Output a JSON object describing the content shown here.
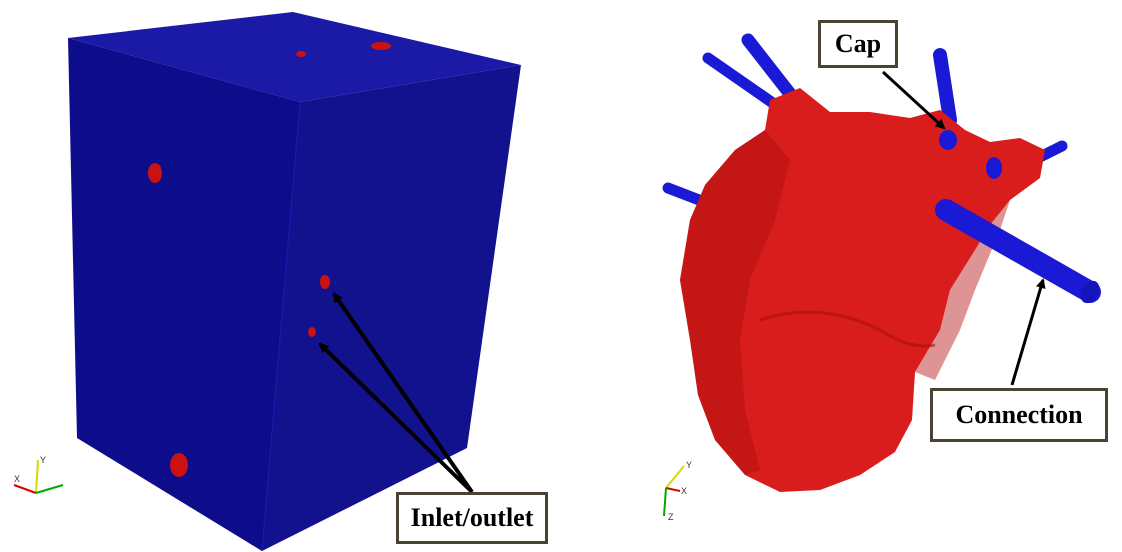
{
  "figure": {
    "left_panel": {
      "callout": "Inlet/outlet",
      "axes": {
        "up": "Y",
        "left": "X"
      }
    },
    "right_panel": {
      "callouts": {
        "cap": "Cap",
        "connection": "Connection"
      },
      "axes": {
        "up": "Y",
        "right": "X",
        "down": "Z"
      }
    },
    "colors": {
      "box_front": "#0d0d8c",
      "box_top": "#1a1aa6",
      "box_side": "#12128f",
      "opening": "#cc1111",
      "heart": "#d91c1c",
      "heart_shade": "#b51212",
      "vessel": "#1a1ad6",
      "arrow": "#000000",
      "callout_border": "#4a4232"
    }
  }
}
